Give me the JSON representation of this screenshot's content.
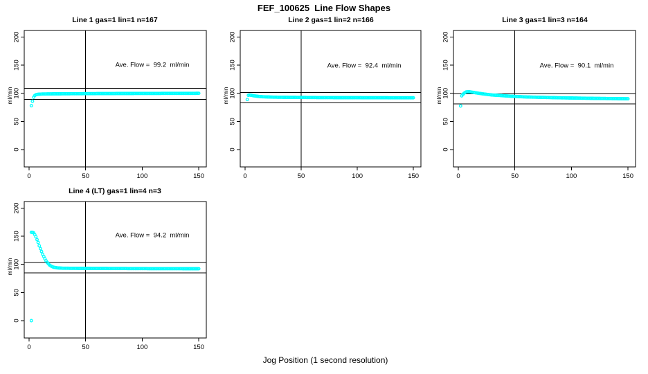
{
  "figure": {
    "title": "FEF_100625  Line Flow Shapes",
    "xlabel": "Jog Position (1 second resolution)"
  },
  "colors": {
    "marker": "#00ffff",
    "axis": "#000000"
  },
  "chart_data": [
    {
      "type": "scatter",
      "title": "Line 1 gas=1 lin=1 n=167",
      "annotation": "Ave. Flow =  99.2  ml/min",
      "ave_flow_ml_min": 99.2,
      "ylabel": "ml/min",
      "xticks": [
        0,
        50,
        100,
        150
      ],
      "yticks": [
        0,
        50,
        100,
        150,
        200
      ],
      "xlim": [
        -4.3,
        156.7
      ],
      "ylim": [
        -30.8,
        211.7
      ],
      "vline_x": 50,
      "hlines": [
        109.1,
        89.3
      ],
      "x_step": 1,
      "series_anchors": [
        [
          2,
          78
        ],
        [
          3,
          86
        ],
        [
          4,
          93
        ],
        [
          5,
          96
        ],
        [
          6,
          97.5
        ],
        [
          8,
          98.3
        ],
        [
          12,
          98.8
        ],
        [
          20,
          99
        ],
        [
          40,
          99.3
        ],
        [
          60,
          99.5
        ],
        [
          100,
          99.8
        ],
        [
          150,
          100
        ]
      ],
      "outlier_points": []
    },
    {
      "type": "scatter",
      "title": "Line 2 gas=1 lin=2 n=166",
      "annotation": "Ave. Flow =  92.4  ml/min",
      "ave_flow_ml_min": 92.4,
      "ylabel": "ml/min",
      "xticks": [
        0,
        50,
        100,
        150
      ],
      "yticks": [
        0,
        50,
        100,
        150,
        200
      ],
      "xlim": [
        -4.3,
        156.7
      ],
      "ylim": [
        -30.8,
        211.7
      ],
      "vline_x": 50,
      "hlines": [
        101.6,
        83.2
      ],
      "x_step": 1,
      "series_anchors": [
        [
          2,
          89
        ],
        [
          3,
          96.5
        ],
        [
          4,
          97
        ],
        [
          6,
          96.3
        ],
        [
          8,
          95.5
        ],
        [
          12,
          94.5
        ],
        [
          16,
          93.8
        ],
        [
          25,
          93.2
        ],
        [
          40,
          92.8
        ],
        [
          70,
          92.4
        ],
        [
          150,
          92
        ]
      ],
      "outlier_points": []
    },
    {
      "type": "scatter",
      "title": "Line 3 gas=1 lin=3 n=164",
      "annotation": "Ave. Flow =  90.1  ml/min",
      "ave_flow_ml_min": 90.1,
      "ylabel": "ml/min",
      "xticks": [
        0,
        50,
        100,
        150
      ],
      "yticks": [
        0,
        50,
        100,
        150,
        200
      ],
      "xlim": [
        -4.3,
        156.7
      ],
      "ylim": [
        -30.8,
        211.7
      ],
      "vline_x": 50,
      "hlines": [
        99.1,
        81.1
      ],
      "x_step": 1,
      "series_anchors": [
        [
          3,
          95.5
        ],
        [
          4,
          98
        ],
        [
          5,
          100
        ],
        [
          7,
          102.5
        ],
        [
          10,
          102.8
        ],
        [
          15,
          101
        ],
        [
          20,
          99.5
        ],
        [
          30,
          97
        ],
        [
          45,
          95
        ],
        [
          60,
          93.5
        ],
        [
          90,
          92
        ],
        [
          120,
          91
        ],
        [
          150,
          90.3
        ]
      ],
      "outlier_points": [
        [
          2,
          77.5
        ]
      ]
    },
    {
      "type": "scatter",
      "title": "Line 4 (LT) gas=1 lin=4 n=3",
      "annotation": "Ave. Flow =  94.2  ml/min",
      "ave_flow_ml_min": 94.2,
      "ylabel": "ml/min",
      "xticks": [
        0,
        50,
        100,
        150
      ],
      "yticks": [
        0,
        50,
        100,
        150,
        200
      ],
      "xlim": [
        -4.3,
        156.7
      ],
      "ylim": [
        -30.8,
        211.7
      ],
      "vline_x": 50,
      "hlines": [
        103.6,
        84.8
      ],
      "x_step": 1,
      "series_anchors": [
        [
          2,
          157
        ],
        [
          3,
          157
        ],
        [
          4,
          156
        ],
        [
          5,
          153
        ],
        [
          6,
          149
        ],
        [
          7,
          144
        ],
        [
          8,
          139
        ],
        [
          9,
          133
        ],
        [
          10,
          128
        ],
        [
          11,
          123
        ],
        [
          12,
          118
        ],
        [
          13,
          114
        ],
        [
          14,
          110
        ],
        [
          15,
          106.5
        ],
        [
          16,
          103.5
        ],
        [
          17,
          101
        ],
        [
          18,
          99
        ],
        [
          19,
          97.5
        ],
        [
          20,
          96.3
        ],
        [
          22,
          94.8
        ],
        [
          25,
          93.8
        ],
        [
          30,
          93.2
        ],
        [
          40,
          93
        ],
        [
          60,
          92.8
        ],
        [
          100,
          92.5
        ],
        [
          150,
          92.3
        ]
      ],
      "outlier_points": [
        [
          2,
          0
        ]
      ]
    }
  ]
}
